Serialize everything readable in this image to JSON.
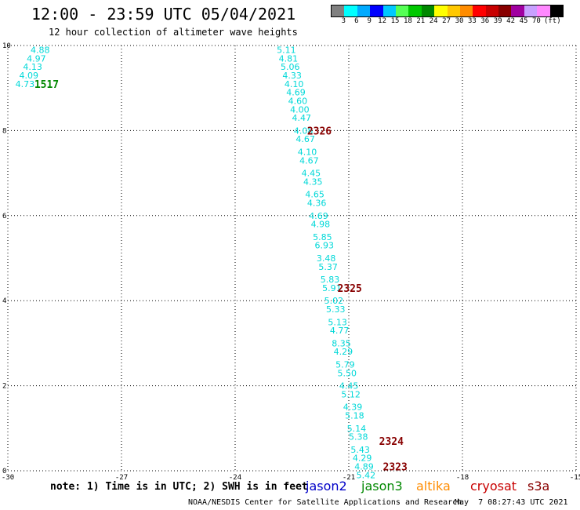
{
  "header": {
    "title": "12:00 - 23:59 UTC 05/04/2021",
    "subtitle": "12 hour collection of altimeter wave heights"
  },
  "legend": {
    "unit": "(ft)",
    "colors": [
      "#808080",
      "#00ffff",
      "#00aaff",
      "#0000ff",
      "#00c8ff",
      "#55ff55",
      "#00c800",
      "#008800",
      "#ffff00",
      "#ffc800",
      "#ff8c00",
      "#ff0000",
      "#c80000",
      "#880000",
      "#a000a0",
      "#c8a0ff",
      "#ff88ff",
      "#000000"
    ],
    "labels": [
      "3",
      "6",
      "9",
      "12",
      "15",
      "18",
      "21",
      "24",
      "27",
      "30",
      "33",
      "36",
      "39",
      "42",
      "45",
      "70"
    ]
  },
  "note": "note: 1) Time is in UTC; 2) SWH is in feet",
  "satellites": [
    {
      "name": "jason2",
      "color": "#0000c8"
    },
    {
      "name": "jason3",
      "color": "#008800"
    },
    {
      "name": "altika",
      "color": "#ff8c00"
    },
    {
      "name": "cryosat",
      "color": "#c80000"
    },
    {
      "name": "s3a",
      "color": "#880000"
    }
  ],
  "footer": {
    "credit": "NOAA/NESDIS Center for Satellite Applications and Research",
    "timestamp": "May  7 08:27:43 UTC 2021"
  },
  "chart_data": {
    "type": "scatter",
    "xlim": [
      -30,
      -15
    ],
    "ylim": [
      0,
      10
    ],
    "x_ticks": [
      "-30",
      "-27",
      "-24",
      "-21",
      "-18",
      "-15"
    ],
    "y_ticks": [
      "0",
      "2",
      "4",
      "6",
      "8",
      "10"
    ],
    "grid": true,
    "wave_labels": [
      {
        "x": -29.4,
        "y": 9.9,
        "v": "4.88"
      },
      {
        "x": -29.5,
        "y": 9.7,
        "v": "4.97"
      },
      {
        "x": -29.6,
        "y": 9.5,
        "v": "4.13"
      },
      {
        "x": -29.7,
        "y": 9.3,
        "v": "4.09"
      },
      {
        "x": -29.8,
        "y": 9.1,
        "v": "4.73"
      },
      {
        "x": -22.9,
        "y": 9.9,
        "v": "5.11"
      },
      {
        "x": -22.85,
        "y": 9.7,
        "v": "4.81"
      },
      {
        "x": -22.8,
        "y": 9.5,
        "v": "5.06"
      },
      {
        "x": -22.75,
        "y": 9.3,
        "v": "4.33"
      },
      {
        "x": -22.7,
        "y": 9.1,
        "v": "4.10"
      },
      {
        "x": -22.65,
        "y": 8.9,
        "v": "4.69"
      },
      {
        "x": -22.6,
        "y": 8.7,
        "v": "4.60"
      },
      {
        "x": -22.55,
        "y": 8.5,
        "v": "4.00"
      },
      {
        "x": -22.5,
        "y": 8.3,
        "v": "4.47"
      },
      {
        "x": -22.45,
        "y": 8.0,
        "v": "4.08"
      },
      {
        "x": -22.4,
        "y": 7.8,
        "v": "4.67"
      },
      {
        "x": -22.35,
        "y": 7.5,
        "v": "4.10"
      },
      {
        "x": -22.3,
        "y": 7.3,
        "v": "4.67"
      },
      {
        "x": -22.25,
        "y": 7.0,
        "v": "4.45"
      },
      {
        "x": -22.2,
        "y": 6.8,
        "v": "4.35"
      },
      {
        "x": -22.15,
        "y": 6.5,
        "v": "4.65"
      },
      {
        "x": -22.1,
        "y": 6.3,
        "v": "4.36"
      },
      {
        "x": -22.05,
        "y": 6.0,
        "v": "4.69"
      },
      {
        "x": -22.0,
        "y": 5.8,
        "v": "4.98"
      },
      {
        "x": -21.95,
        "y": 5.5,
        "v": "5.85"
      },
      {
        "x": -21.9,
        "y": 5.3,
        "v": "6.93"
      },
      {
        "x": -21.85,
        "y": 5.0,
        "v": "3.48"
      },
      {
        "x": -21.8,
        "y": 4.8,
        "v": "5.37"
      },
      {
        "x": -21.75,
        "y": 4.5,
        "v": "5.83"
      },
      {
        "x": -21.7,
        "y": 4.3,
        "v": "5.91"
      },
      {
        "x": -21.65,
        "y": 4.0,
        "v": "5.02"
      },
      {
        "x": -21.6,
        "y": 3.8,
        "v": "5.33"
      },
      {
        "x": -21.55,
        "y": 3.5,
        "v": "5.13"
      },
      {
        "x": -21.5,
        "y": 3.3,
        "v": "4.77"
      },
      {
        "x": -21.45,
        "y": 3.0,
        "v": "8.35"
      },
      {
        "x": -21.4,
        "y": 2.8,
        "v": "4.29"
      },
      {
        "x": -21.35,
        "y": 2.5,
        "v": "5.79"
      },
      {
        "x": -21.3,
        "y": 2.3,
        "v": "5.50"
      },
      {
        "x": -21.25,
        "y": 2.0,
        "v": "4.45"
      },
      {
        "x": -21.2,
        "y": 1.8,
        "v": "5.12"
      },
      {
        "x": -21.15,
        "y": 1.5,
        "v": "4.39"
      },
      {
        "x": -21.1,
        "y": 1.3,
        "v": "5.18"
      },
      {
        "x": -21.05,
        "y": 1.0,
        "v": "5.14"
      },
      {
        "x": -21.0,
        "y": 0.8,
        "v": "5.38"
      },
      {
        "x": -20.95,
        "y": 0.5,
        "v": "5.43"
      },
      {
        "x": -20.9,
        "y": 0.3,
        "v": "4.29"
      },
      {
        "x": -20.85,
        "y": 0.1,
        "v": "4.89"
      },
      {
        "x": -20.8,
        "y": -0.1,
        "v": "5.42"
      }
    ],
    "time_labels": [
      {
        "x": -29.3,
        "y": 9.1,
        "t": "1517",
        "color": "#008800"
      },
      {
        "x": -22.1,
        "y": 8.0,
        "t": "2326",
        "color": "#880000"
      },
      {
        "x": -21.3,
        "y": 4.3,
        "t": "2325",
        "color": "#880000"
      },
      {
        "x": -20.2,
        "y": 0.7,
        "t": "2324",
        "color": "#880000"
      },
      {
        "x": -20.1,
        "y": 0.1,
        "t": "2323",
        "color": "#880000"
      }
    ]
  }
}
